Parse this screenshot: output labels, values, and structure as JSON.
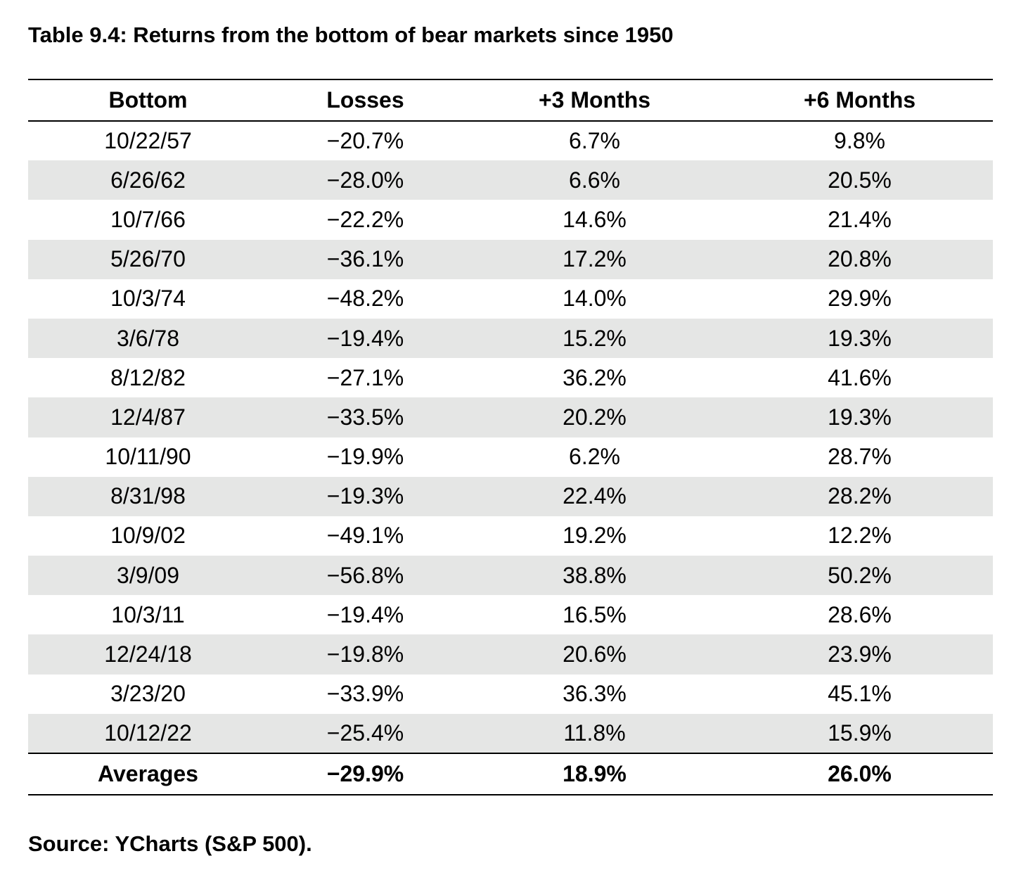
{
  "title": "Table 9.4: Returns from the bottom of bear markets since 1950",
  "columns": [
    "Bottom",
    "Losses",
    "+3 Months",
    "+6 Months"
  ],
  "rows": [
    [
      "10/22/57",
      "−20.7%",
      "6.7%",
      "9.8%"
    ],
    [
      "6/26/62",
      "−28.0%",
      "6.6%",
      "20.5%"
    ],
    [
      "10/7/66",
      "−22.2%",
      "14.6%",
      "21.4%"
    ],
    [
      "5/26/70",
      "−36.1%",
      "17.2%",
      "20.8%"
    ],
    [
      "10/3/74",
      "−48.2%",
      "14.0%",
      "29.9%"
    ],
    [
      "3/6/78",
      "−19.4%",
      "15.2%",
      "19.3%"
    ],
    [
      "8/12/82",
      "−27.1%",
      "36.2%",
      "41.6%"
    ],
    [
      "12/4/87",
      "−33.5%",
      "20.2%",
      "19.3%"
    ],
    [
      "10/11/90",
      "−19.9%",
      "6.2%",
      "28.7%"
    ],
    [
      "8/31/98",
      "−19.3%",
      "22.4%",
      "28.2%"
    ],
    [
      "10/9/02",
      "−49.1%",
      "19.2%",
      "12.2%"
    ],
    [
      "3/9/09",
      "−56.8%",
      "38.8%",
      "50.2%"
    ],
    [
      "10/3/11",
      "−19.4%",
      "16.5%",
      "28.6%"
    ],
    [
      "12/24/18",
      "−19.8%",
      "20.6%",
      "23.9%"
    ],
    [
      "3/23/20",
      "−33.9%",
      "36.3%",
      "45.1%"
    ],
    [
      "10/12/22",
      "−25.4%",
      "11.8%",
      "15.9%"
    ]
  ],
  "averages": [
    "Averages",
    "−29.9%",
    "18.9%",
    "26.0%"
  ],
  "source": "Source: YCharts (S&P 500).",
  "colors": {
    "shaded_row": "#e5e6e5",
    "rule": "#000000"
  }
}
